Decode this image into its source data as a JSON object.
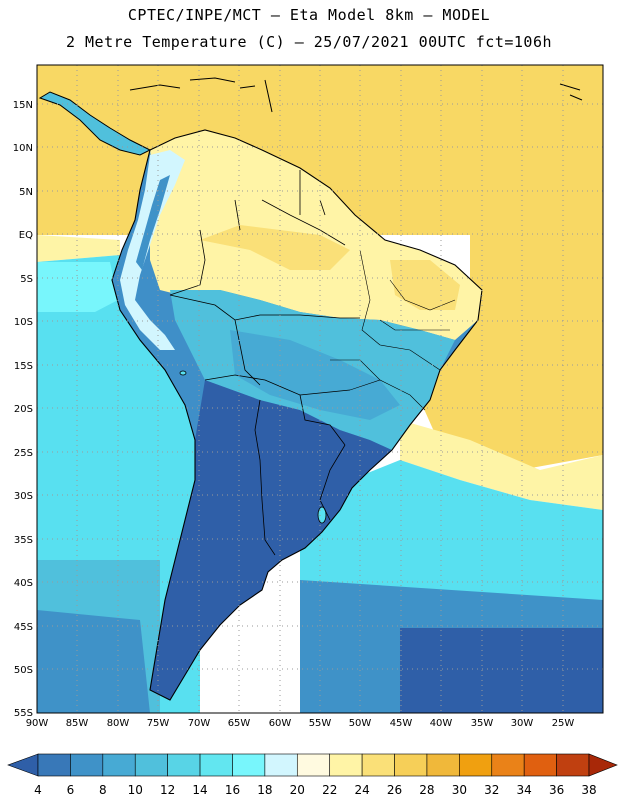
{
  "header": {
    "line1": "CPTEC/INPE/MCT –  Eta Model 8km – MODEL",
    "line2": "2 Metre Temperature (C) – 25/07/2021 00UTC fct=106h"
  },
  "map": {
    "region": "South America",
    "lat_labels": [
      "15N",
      "10N",
      "5N",
      "EQ",
      "5S",
      "10S",
      "15S",
      "20S",
      "25S",
      "30S",
      "35S",
      "40S",
      "45S",
      "50S",
      "55S"
    ],
    "lon_labels": [
      "90W",
      "85W",
      "80W",
      "75W",
      "70W",
      "65W",
      "60W",
      "55W",
      "50W",
      "45W",
      "40W",
      "35W",
      "30W",
      "25W"
    ],
    "grid": "dotted",
    "colors": {
      "ocean_tropical": "#f8d864",
      "ocean_subtropical": "#fef4a6",
      "ocean_mid": "#58e0f0",
      "ocean_south": "#38a8d0",
      "land_cold": "#2f5fa8",
      "land_cool": "#3f8fc8",
      "land_warm": "#fff0a0",
      "land_hot": "#f4c844",
      "andes": "#d6f6ff",
      "coast": "#000000"
    }
  },
  "colorbar": {
    "labels": [
      "4",
      "6",
      "8",
      "10",
      "12",
      "14",
      "16",
      "18",
      "20",
      "22",
      "24",
      "26",
      "28",
      "30",
      "32",
      "34",
      "36",
      "38"
    ],
    "colors": [
      "#2f5fa8",
      "#3878b8",
      "#3f92c8",
      "#47aad4",
      "#50c0dc",
      "#58d4e6",
      "#62e6f0",
      "#78f6fc",
      "#d2f6fe",
      "#fffae0",
      "#fff4a6",
      "#fae078",
      "#f6cf58",
      "#f0b83a",
      "#f0a010",
      "#ea8218",
      "#e06010",
      "#c04010",
      "#a82808"
    ]
  }
}
